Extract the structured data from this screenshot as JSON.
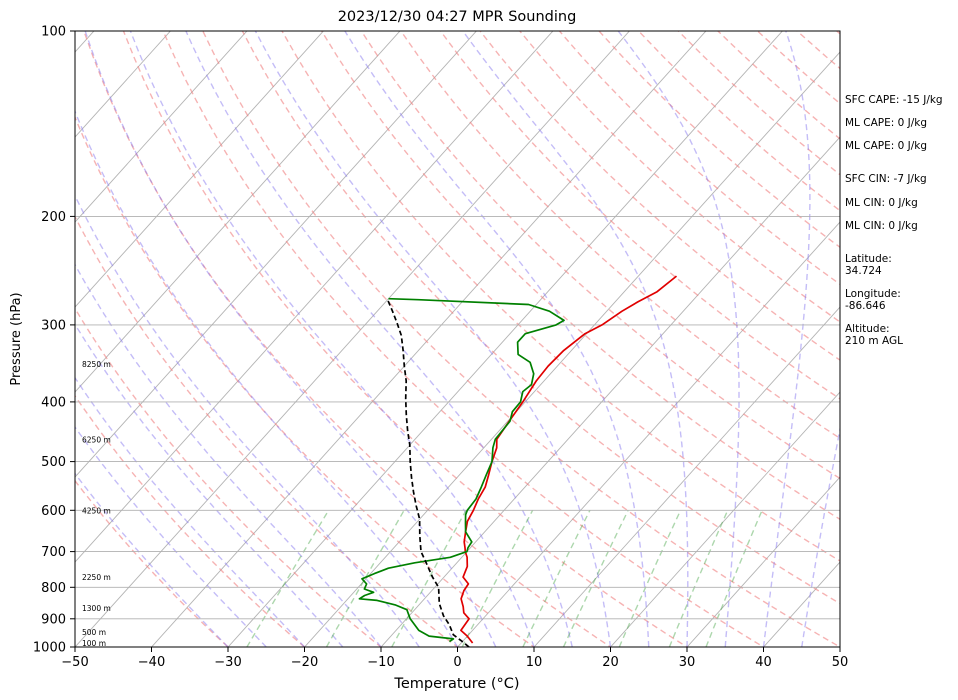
{
  "chart_data": {
    "type": "line",
    "title": "2023/12/30 04:27 MPR Sounding",
    "xlabel": "Temperature (°C)",
    "ylabel": "Pressure (hPa)",
    "xlim": [
      -50,
      50
    ],
    "ylim": [
      1000,
      100
    ],
    "yscale": "log",
    "x_ticks": [
      -50,
      -40,
      -30,
      -20,
      -10,
      0,
      10,
      20,
      30,
      40,
      50
    ],
    "y_ticks": [
      100,
      200,
      300,
      400,
      500,
      600,
      700,
      800,
      900,
      1000
    ],
    "grid": "horizontal isobars",
    "skew": "skew-T log-p diagram",
    "height_labels": [
      {
        "text": "8250 m",
        "p": 347
      },
      {
        "text": "6250 m",
        "p": 460
      },
      {
        "text": "4250 m",
        "p": 600
      },
      {
        "text": "2250 m",
        "p": 770
      },
      {
        "text": "1300 m",
        "p": 865
      },
      {
        "text": "500 m",
        "p": 945
      },
      {
        "text": "100 m",
        "p": 985
      }
    ],
    "info": [
      {
        "key": "sfc_cape",
        "text": "SFC CAPE: -15 J/kg"
      },
      {
        "key": "ml_cape_1",
        "text": "ML CAPE: 0 J/kg"
      },
      {
        "key": "ml_cape_2",
        "text": "ML CAPE: 0 J/kg"
      },
      {
        "key": "sfc_cin",
        "text": "SFC CIN: -7 J/kg"
      },
      {
        "key": "ml_cin_1",
        "text": "ML CIN: 0 J/kg"
      },
      {
        "key": "ml_cin_2",
        "text": "ML CIN: 0 J/kg"
      },
      {
        "key": "lat_label",
        "text": "Latitude:"
      },
      {
        "key": "lat_value",
        "text": "34.724"
      },
      {
        "key": "lon_label",
        "text": "Longitude:"
      },
      {
        "key": "lon_value",
        "text": "-86.646"
      },
      {
        "key": "alt_label",
        "text": "Altitude:"
      },
      {
        "key": "alt_value",
        "text": "210 m AGL"
      }
    ],
    "series": [
      {
        "key": "temperature",
        "color": "#e00000",
        "points": [
          [
            1.5,
            985
          ],
          [
            0,
            960
          ],
          [
            -1.5,
            940
          ],
          [
            -1.8,
            900
          ],
          [
            -3.2,
            880
          ],
          [
            -4,
            860
          ],
          [
            -5.2,
            835
          ],
          [
            -5.8,
            810
          ],
          [
            -6,
            790
          ],
          [
            -7.5,
            770
          ],
          [
            -8.2,
            740
          ],
          [
            -9.3,
            715
          ],
          [
            -10.2,
            700
          ],
          [
            -10.7,
            690
          ],
          [
            -11.5,
            675
          ],
          [
            -12.5,
            650
          ],
          [
            -13.5,
            625
          ],
          [
            -14,
            600
          ],
          [
            -14.7,
            575
          ],
          [
            -15.2,
            550
          ],
          [
            -16.2,
            525
          ],
          [
            -17.3,
            500
          ],
          [
            -18.3,
            475
          ],
          [
            -19.3,
            460
          ],
          [
            -19.8,
            430
          ],
          [
            -20.3,
            400
          ],
          [
            -21,
            370
          ],
          [
            -21.2,
            350
          ],
          [
            -21,
            330
          ],
          [
            -20.2,
            310
          ],
          [
            -19,
            300
          ],
          [
            -18,
            285
          ],
          [
            -17,
            275
          ],
          [
            -15.7,
            265
          ],
          [
            -15,
            250
          ]
        ]
      },
      {
        "key": "dewpoint",
        "color": "#008000",
        "points": [
          [
            -1.7,
            980
          ],
          [
            -1.5,
            970
          ],
          [
            -5,
            960
          ],
          [
            -7,
            940
          ],
          [
            -9.5,
            900
          ],
          [
            -10.5,
            880
          ],
          [
            -11,
            870
          ],
          [
            -13,
            855
          ],
          [
            -16,
            840
          ],
          [
            -18.5,
            835
          ],
          [
            -18.2,
            825
          ],
          [
            -17.4,
            815
          ],
          [
            -19,
            805
          ],
          [
            -19.3,
            790
          ],
          [
            -20.5,
            775
          ],
          [
            -19.5,
            760
          ],
          [
            -18.3,
            745
          ],
          [
            -15.5,
            730
          ],
          [
            -11.5,
            715
          ],
          [
            -10,
            700
          ],
          [
            -10.3,
            690
          ],
          [
            -10.5,
            675
          ],
          [
            -12.5,
            650
          ],
          [
            -13.5,
            630
          ],
          [
            -14.5,
            610
          ],
          [
            -14.8,
            600
          ],
          [
            -15,
            575
          ],
          [
            -15.7,
            550
          ],
          [
            -16.5,
            525
          ],
          [
            -17.3,
            500
          ],
          [
            -18.8,
            475
          ],
          [
            -19.5,
            460
          ],
          [
            -19.7,
            430
          ],
          [
            -20.5,
            415
          ],
          [
            -20.6,
            400
          ],
          [
            -21.5,
            385
          ],
          [
            -21.2,
            375
          ],
          [
            -22.2,
            360
          ],
          [
            -24,
            345
          ],
          [
            -26.5,
            335
          ],
          [
            -28,
            320
          ],
          [
            -28,
            310
          ],
          [
            -25,
            300
          ],
          [
            -24.5,
            295
          ],
          [
            -27.5,
            285
          ],
          [
            -31,
            278
          ],
          [
            -46,
            273
          ],
          [
            -50,
            272
          ]
        ]
      },
      {
        "key": "parcel",
        "color": "#000000",
        "dashed": true,
        "points": [
          [
            1.5,
            1000
          ],
          [
            0,
            980
          ],
          [
            -2,
            955
          ],
          [
            -3.7,
            920
          ],
          [
            -5.5,
            890
          ],
          [
            -7.5,
            850
          ],
          [
            -9.5,
            800
          ],
          [
            -11.5,
            770
          ],
          [
            -14,
            730
          ],
          [
            -16,
            700
          ],
          [
            -18,
            660
          ],
          [
            -20,
            620
          ],
          [
            -22,
            590
          ],
          [
            -24,
            560
          ],
          [
            -26,
            530
          ],
          [
            -28,
            500
          ],
          [
            -30,
            470
          ],
          [
            -32,
            445
          ],
          [
            -34,
            420
          ],
          [
            -36,
            395
          ],
          [
            -38,
            370
          ],
          [
            -40,
            350
          ],
          [
            -42,
            330
          ],
          [
            -44,
            312
          ],
          [
            -46,
            298
          ],
          [
            -48,
            285
          ],
          [
            -50,
            273
          ]
        ]
      }
    ]
  }
}
